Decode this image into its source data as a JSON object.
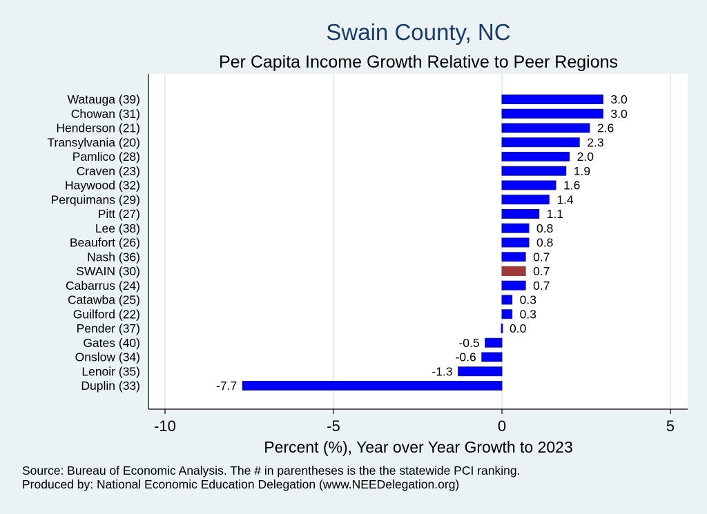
{
  "chart_data": {
    "type": "bar",
    "orientation": "horizontal",
    "title": "Swain County, NC",
    "subtitle": "Per Capita Income Growth Relative to Peer Regions",
    "xlabel": "Percent (%), Year over Year Growth to 2023",
    "ylabel": "",
    "xlim": [
      -10.5,
      5.5
    ],
    "xticks": [
      -10,
      -5,
      0,
      5
    ],
    "xtick_labels": [
      "-10",
      "-5",
      "0",
      "5"
    ],
    "grid": true,
    "categories": [
      "Watauga (39)",
      "Chowan (31)",
      "Henderson (21)",
      "Transylvania (20)",
      "Pamlico (28)",
      "Craven (23)",
      "Haywood (32)",
      "Perquimans (29)",
      "Pitt (27)",
      "Lee (38)",
      "Beaufort (26)",
      "Nash (36)",
      "SWAIN (30)",
      "Cabarrus (24)",
      "Catawba (25)",
      "Guilford (22)",
      "Pender (37)",
      "Gates (40)",
      "Onslow (34)",
      "Lenoir (35)",
      "Duplin (33)"
    ],
    "values": [
      3.0,
      3.0,
      2.6,
      2.3,
      2.0,
      1.9,
      1.6,
      1.4,
      1.1,
      0.8,
      0.8,
      0.7,
      0.7,
      0.7,
      0.3,
      0.3,
      0.0,
      -0.5,
      -0.6,
      -1.3,
      -7.7
    ],
    "value_labels": [
      "3.0",
      "3.0",
      "2.6",
      "2.3",
      "2.0",
      "1.9",
      "1.6",
      "1.4",
      "1.1",
      "0.8",
      "0.8",
      "0.7",
      "0.7",
      "0.7",
      "0.3",
      "0.3",
      "0.0",
      "-0.5",
      "-0.6",
      "-1.3",
      "-7.7"
    ],
    "highlight_category": "SWAIN (30)",
    "colors": {
      "bar": "#0000ff",
      "bar_outline": "#1a1a8c",
      "highlight": "#9e3a3a",
      "title": "#1a3a6b",
      "plot_bg": "#ffffff",
      "page_bg": "#eaf2f3",
      "grid": "#e3eeef"
    }
  },
  "footnotes": {
    "source": "Source: Bureau of Economic Analysis. The # in parentheses is the the statewide PCI ranking.",
    "produced_by": "Produced by: National Economic Education Delegation (www.NEEDelegation.org)"
  }
}
